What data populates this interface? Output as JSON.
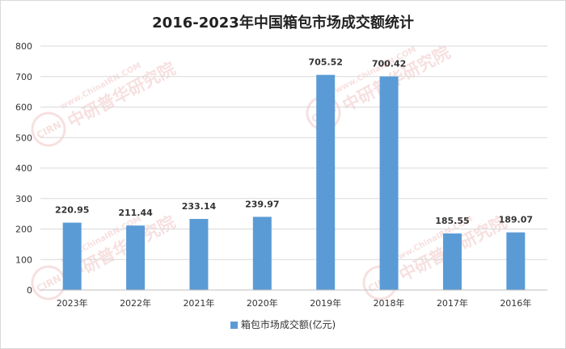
{
  "colors": {
    "bar": "#5b9bd5",
    "grid": "#d9d9d9",
    "text": "#333333",
    "watermark": "#e8a0a0"
  },
  "watermark": {
    "url": "www.ChinaIRN.COM",
    "name": "中研普华研究院",
    "logo": "CIRN"
  },
  "chart_data": {
    "type": "bar",
    "title": "2016-2023年中国箱包市场成交额统计",
    "categories": [
      "2023年",
      "2022年",
      "2021年",
      "2020年",
      "2019年",
      "2018年",
      "2017年",
      "2016年"
    ],
    "series": [
      {
        "name": "箱包市场成交额(亿元)",
        "values": [
          220.95,
          211.44,
          233.14,
          239.97,
          705.52,
          700.42,
          185.55,
          189.07
        ]
      }
    ],
    "value_labels": [
      "220.95",
      "211.44",
      "233.14",
      "239.97",
      "705.52",
      "700.42",
      "185.55",
      "189.07"
    ],
    "ylim": [
      0,
      800
    ],
    "yticks": [
      "0",
      "100",
      "200",
      "300",
      "400",
      "500",
      "600",
      "700",
      "800"
    ],
    "grid": true,
    "legend": "bottom"
  }
}
